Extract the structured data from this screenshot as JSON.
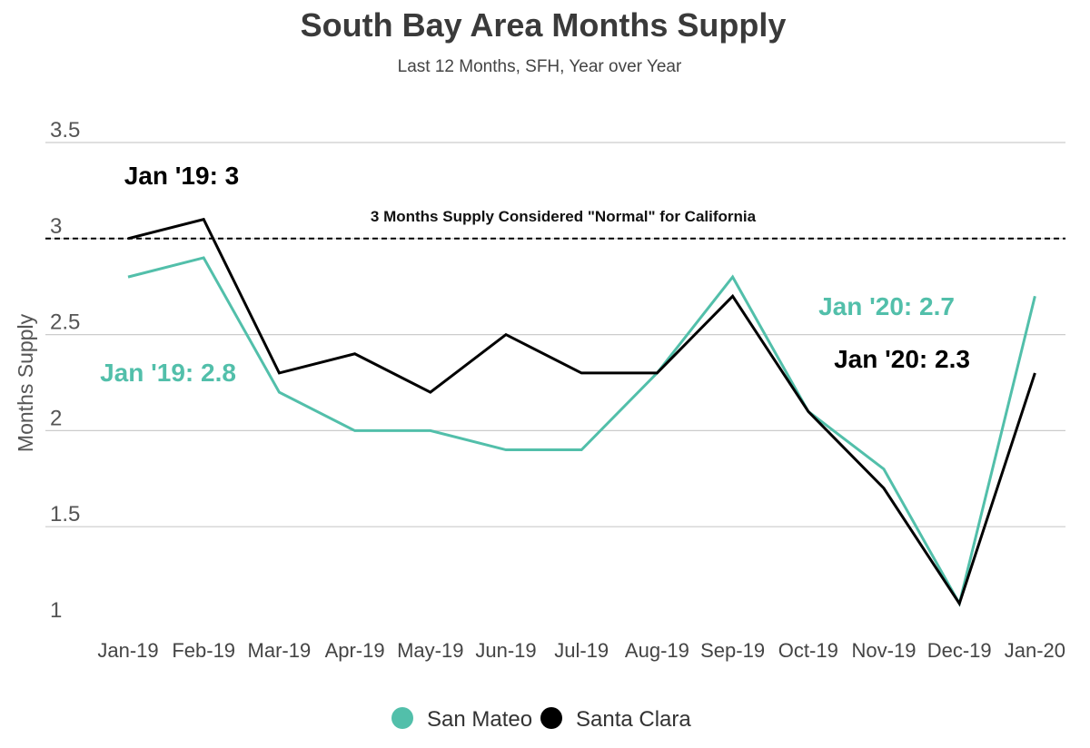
{
  "chart_data": {
    "type": "line",
    "title": "South Bay Area Months Supply",
    "subtitle": "Last 12 Months, SFH, Year over Year",
    "ylabel": "Months Supply",
    "xlabel": "",
    "categories": [
      "Jan-19",
      "Feb-19",
      "Mar-19",
      "Apr-19",
      "May-19",
      "Jun-19",
      "Jul-19",
      "Aug-19",
      "Sep-19",
      "Oct-19",
      "Nov-19",
      "Dec-19",
      "Jan-20"
    ],
    "ylim": [
      1,
      3.5
    ],
    "yticks": [
      "3.5",
      "3",
      "2.5",
      "2",
      "1.5",
      "1"
    ],
    "grid": true,
    "legend_position": "bottom",
    "series": [
      {
        "name": "San Mateo",
        "color": "#52bfaa",
        "values": [
          2.8,
          2.9,
          2.2,
          2.0,
          2.0,
          1.9,
          1.9,
          2.3,
          2.8,
          2.1,
          1.8,
          1.1,
          2.7
        ]
      },
      {
        "name": "Santa Clara",
        "color": "#000000",
        "values": [
          3.0,
          3.1,
          2.3,
          2.4,
          2.2,
          2.5,
          2.3,
          2.3,
          2.7,
          2.1,
          1.7,
          1.1,
          2.3
        ]
      }
    ],
    "reference_line": {
      "value": 3,
      "label": "3 Months Supply Considered \"Normal\" for California",
      "style": "dashed",
      "color": "#000000"
    },
    "annotations": [
      {
        "text": "Jan '19: 3",
        "color": "#000000"
      },
      {
        "text": "Jan '19: 2.8",
        "color": "#52bfaa"
      },
      {
        "text": "Jan '20: 2.7",
        "color": "#52bfaa"
      },
      {
        "text": "Jan '20: 2.3",
        "color": "#000000"
      }
    ]
  }
}
